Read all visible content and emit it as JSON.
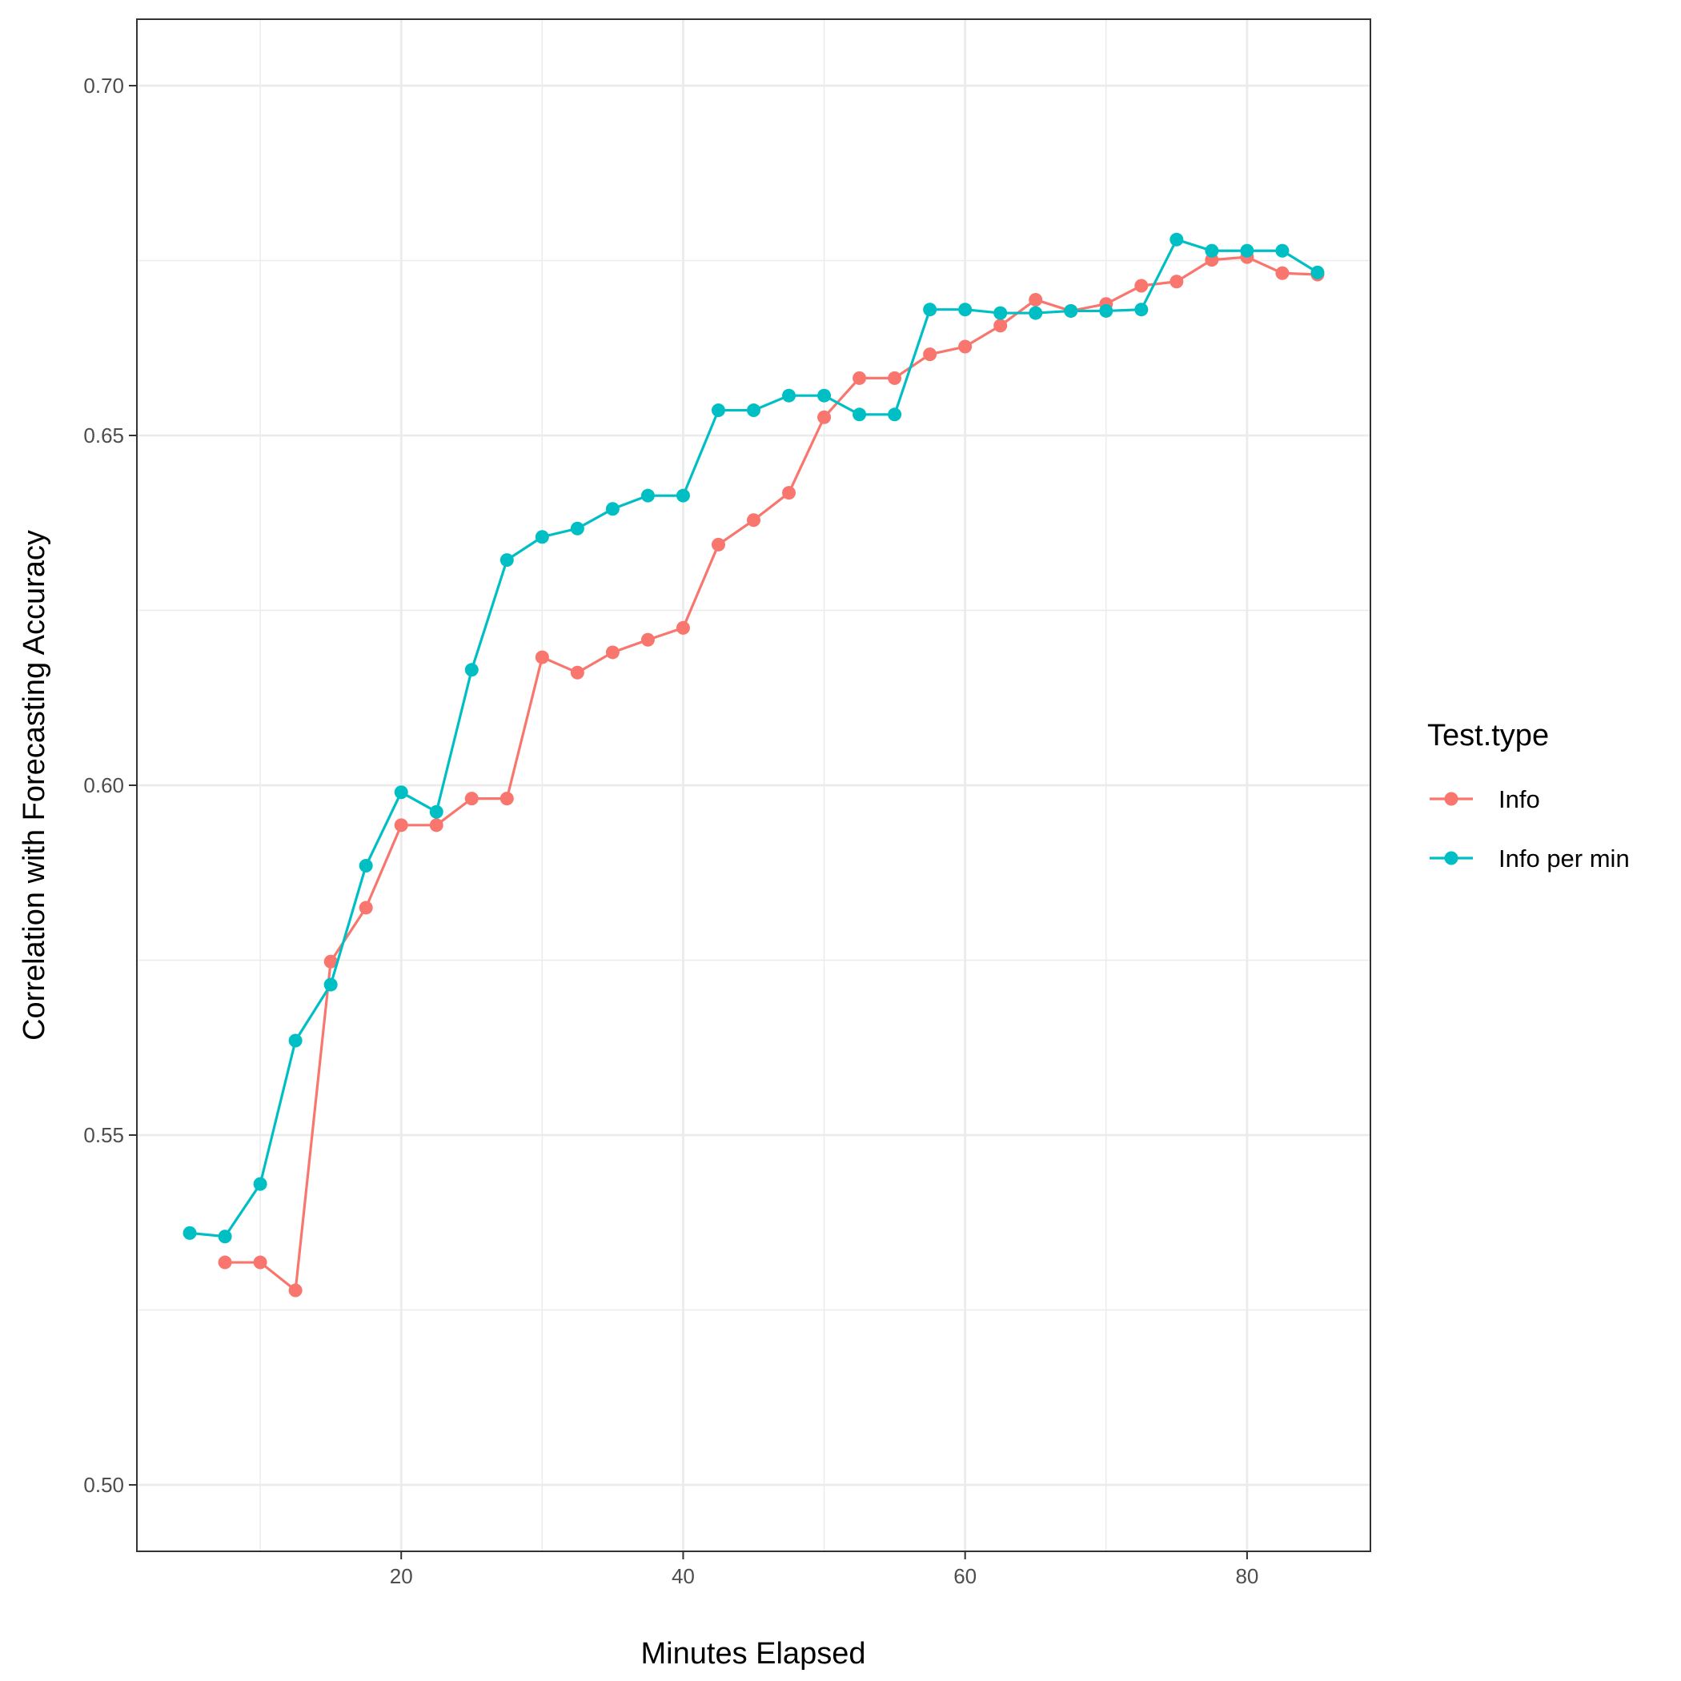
{
  "chart_data": {
    "type": "line",
    "title": "",
    "xlabel": "Minutes Elapsed",
    "ylabel": "Correlation with Forecasting Accuracy",
    "xlim": [
      1.25,
      88.75
    ],
    "ylim": [
      0.4905,
      0.7095
    ],
    "x_ticks": [
      20,
      40,
      60,
      80
    ],
    "x_tick_labels": [
      "20",
      "40",
      "60",
      "80"
    ],
    "y_ticks": [
      0.5,
      0.55,
      0.6,
      0.65,
      0.7
    ],
    "y_tick_labels": [
      "0.50",
      "0.55",
      "0.60",
      "0.65",
      "0.70"
    ],
    "x_minor_ticks": [
      10,
      30,
      50,
      70
    ],
    "y_minor_ticks": [
      0.525,
      0.575,
      0.625,
      0.675
    ],
    "grid": true,
    "legend": {
      "title": "Test.type",
      "position": "right"
    },
    "series": [
      {
        "name": "Info",
        "color": "#F8766D",
        "x": [
          7.5,
          10,
          12.5,
          15,
          17.5,
          20,
          22.5,
          25,
          27.5,
          30,
          32.5,
          35,
          37.5,
          40,
          42.5,
          45,
          47.5,
          50,
          52.5,
          55,
          57.5,
          60,
          62.5,
          65,
          67.5,
          70,
          72.5,
          75,
          77.5,
          80,
          82.5,
          85
        ],
        "values": [
          0.5318,
          0.5318,
          0.5278,
          0.5748,
          0.5825,
          0.5943,
          0.5943,
          0.5981,
          0.5981,
          0.6183,
          0.6161,
          0.619,
          0.6208,
          0.6225,
          0.6344,
          0.6379,
          0.6418,
          0.6526,
          0.6582,
          0.6582,
          0.6616,
          0.6627,
          0.6657,
          0.6694,
          0.6678,
          0.6688,
          0.6714,
          0.672,
          0.6751,
          0.6755,
          0.6732,
          0.673
        ]
      },
      {
        "name": "Info per min",
        "color": "#00BFC4",
        "x": [
          5,
          7.5,
          10,
          12.5,
          15,
          17.5,
          20,
          22.5,
          25,
          27.5,
          30,
          32.5,
          35,
          37.5,
          40,
          42.5,
          45,
          47.5,
          50,
          52.5,
          55,
          57.5,
          60,
          62.5,
          65,
          67.5,
          70,
          72.5,
          75,
          77.5,
          80,
          82.5,
          85
        ],
        "values": [
          0.536,
          0.5355,
          0.543,
          0.5635,
          0.5715,
          0.5885,
          0.599,
          0.5962,
          0.6165,
          0.6322,
          0.6355,
          0.6367,
          0.6395,
          0.6414,
          0.6414,
          0.6536,
          0.6536,
          0.6557,
          0.6557,
          0.653,
          0.653,
          0.668,
          0.668,
          0.6675,
          0.6675,
          0.6678,
          0.6678,
          0.668,
          0.678,
          0.6764,
          0.6764,
          0.6764,
          0.6733
        ]
      }
    ]
  }
}
